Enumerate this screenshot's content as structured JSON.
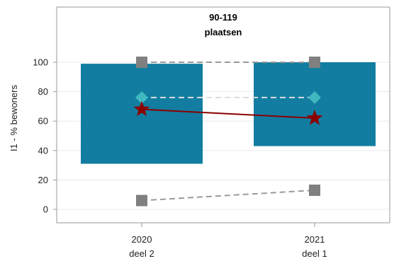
{
  "chart_data": {
    "type": "bar",
    "title_lines": [
      "90-119",
      "plaatsen"
    ],
    "ylabel": "I1 - % bewoners",
    "ylim": [
      -10,
      135
    ],
    "yticks": [
      0,
      20,
      40,
      60,
      80,
      100
    ],
    "grid": true,
    "categories": [
      {
        "year": "2020",
        "part": "deel 2"
      },
      {
        "year": "2021",
        "part": "deel 1"
      }
    ],
    "range_bars": [
      {
        "low": 31,
        "high": 99
      },
      {
        "low": 43,
        "high": 100
      }
    ],
    "series": [
      {
        "marker": "square",
        "color": "#808080",
        "line": "dashed",
        "line_color": "#9a9a9a",
        "values": [
          100,
          100
        ]
      },
      {
        "marker": "diamond",
        "color": "#40b8c0",
        "line": "dashed",
        "line_color": "#dddddd",
        "values": [
          76,
          76
        ]
      },
      {
        "marker": "star",
        "color": "#8b0000",
        "line": "solid",
        "line_color": "#8b0000",
        "values": [
          68,
          62
        ]
      },
      {
        "marker": "square",
        "color": "#808080",
        "line": "dashed",
        "line_color": "#9a9a9a",
        "values": [
          6,
          13
        ]
      }
    ],
    "colors": {
      "bar": "#127da1",
      "grid": "#e8e8e8",
      "frame": "#9a9a9a"
    }
  }
}
